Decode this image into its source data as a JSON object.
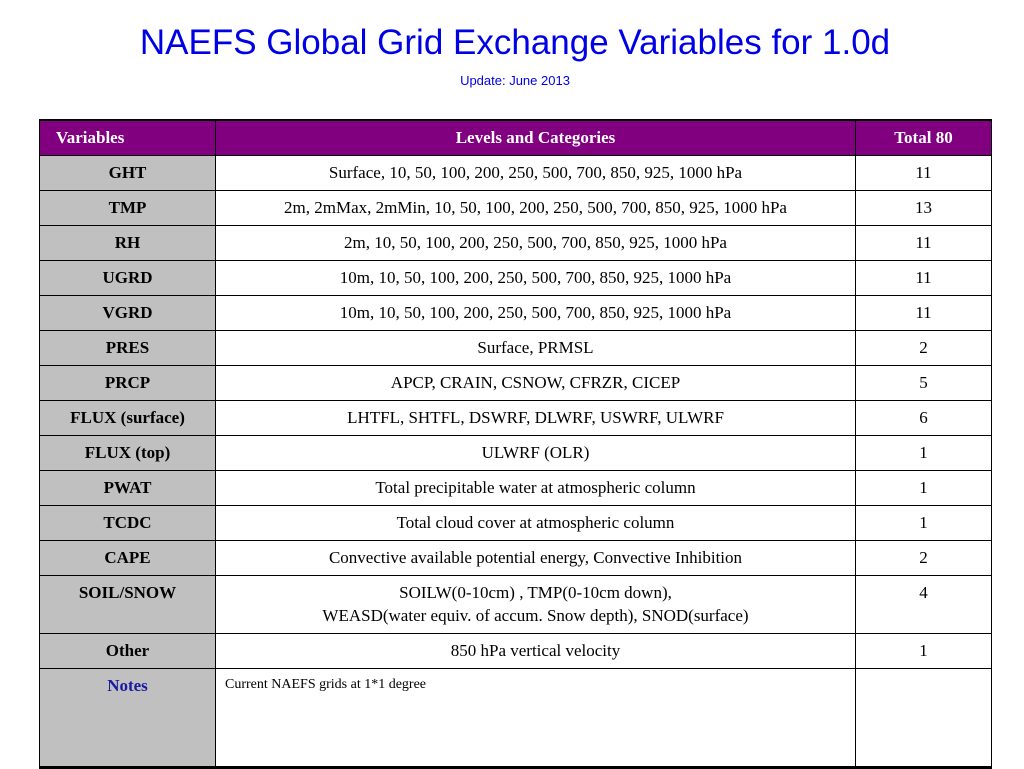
{
  "title": "NAEFS Global Grid Exchange Variables for 1.0d",
  "subtitle": "Update: June 2013",
  "colors": {
    "title": "#0000e6",
    "header_bg": "#800080",
    "header_text": "#ffffff",
    "variable_cell_bg": "#c0c0c0",
    "notes_label": "#1a1aa0"
  },
  "table": {
    "headers": {
      "variables": "Variables",
      "levels": "Levels and Categories",
      "total": "Total  80"
    },
    "rows": [
      {
        "variable": "GHT",
        "levels": "Surface, 10, 50, 100, 200, 250, 500, 700, 850, 925, 1000 hPa",
        "total": "11"
      },
      {
        "variable": "TMP",
        "levels": "2m, 2mMax, 2mMin, 10, 50, 100, 200, 250, 500, 700, 850, 925, 1000 hPa",
        "total": "13"
      },
      {
        "variable": "RH",
        "levels": "2m, 10, 50, 100, 200, 250, 500, 700, 850, 925, 1000 hPa",
        "total": "11"
      },
      {
        "variable": "UGRD",
        "levels": "10m, 10, 50, 100, 200, 250, 500, 700, 850, 925, 1000 hPa",
        "total": "11"
      },
      {
        "variable": "VGRD",
        "levels": "10m, 10, 50, 100, 200, 250, 500, 700, 850, 925, 1000 hPa",
        "total": "11"
      },
      {
        "variable": "PRES",
        "levels": "Surface, PRMSL",
        "total": "2"
      },
      {
        "variable": "PRCP",
        "levels": "APCP, CRAIN, CSNOW, CFRZR, CICEP",
        "total": "5"
      },
      {
        "variable": "FLUX (surface)",
        "levels": "LHTFL, SHTFL, DSWRF, DLWRF, USWRF, ULWRF",
        "total": "6"
      },
      {
        "variable": "FLUX (top)",
        "levels": "ULWRF (OLR)",
        "total": "1"
      },
      {
        "variable": "PWAT",
        "levels": "Total precipitable water at atmospheric column",
        "total": "1"
      },
      {
        "variable": "TCDC",
        "levels": "Total cloud cover at atmospheric column",
        "total": "1"
      },
      {
        "variable": "CAPE",
        "levels": "Convective available potential energy, Convective Inhibition",
        "total": "2"
      },
      {
        "variable": "SOIL/SNOW",
        "levels_line1": "SOILW(0-10cm) , TMP(0-10cm down),",
        "levels_line2": "WEASD(water equiv. of accum. Snow depth),  SNOD(surface)",
        "total": "4"
      },
      {
        "variable": "Other",
        "levels": "850 hPa  vertical velocity",
        "total": "1"
      }
    ],
    "notes": {
      "label": "Notes",
      "text": "Current NAEFS grids at 1*1 degree",
      "total": ""
    }
  }
}
